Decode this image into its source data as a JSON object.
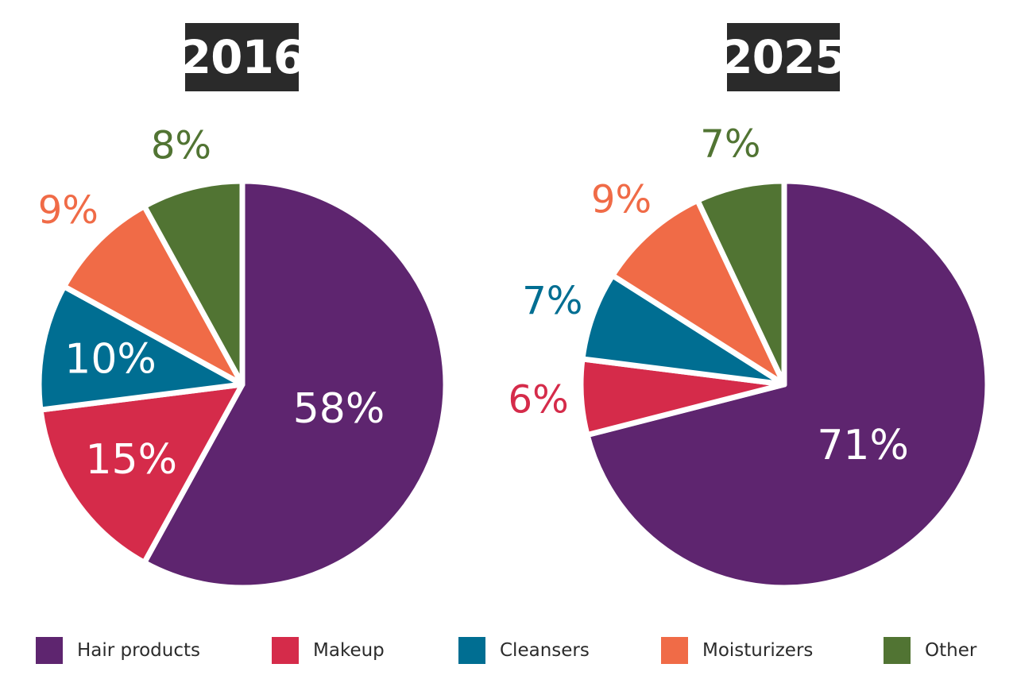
{
  "colors": {
    "hair": "#5e256f",
    "makeup": "#d52b4a",
    "cleansers": "#006e92",
    "moisturizers": "#f06b47",
    "other": "#517433",
    "title_bg": "#2a2a2a"
  },
  "legend": [
    {
      "key": "hair",
      "label": "Hair products"
    },
    {
      "key": "makeup",
      "label": "Makeup"
    },
    {
      "key": "cleansers",
      "label": "Cleansers"
    },
    {
      "key": "moisturizers",
      "label": "Moisturizers"
    },
    {
      "key": "other",
      "label": "Other"
    }
  ],
  "chart_data": [
    {
      "type": "pie",
      "title": "2016",
      "slices": [
        {
          "key": "hair",
          "name": "Hair products",
          "value": 58,
          "label": "58%"
        },
        {
          "key": "makeup",
          "name": "Makeup",
          "value": 15,
          "label": "15%"
        },
        {
          "key": "cleansers",
          "name": "Cleansers",
          "value": 10,
          "label": "10%"
        },
        {
          "key": "moisturizers",
          "name": "Moisturizers",
          "value": 9,
          "label": "9%"
        },
        {
          "key": "other",
          "name": "Other",
          "value": 8,
          "label": "8%"
        }
      ]
    },
    {
      "type": "pie",
      "title": "2025",
      "slices": [
        {
          "key": "hair",
          "name": "Hair products",
          "value": 71,
          "label": "71%"
        },
        {
          "key": "makeup",
          "name": "Makeup",
          "value": 6,
          "label": "6%"
        },
        {
          "key": "cleansers",
          "name": "Cleansers",
          "value": 7,
          "label": "7%"
        },
        {
          "key": "moisturizers",
          "name": "Moisturizers",
          "value": 9,
          "label": "9%"
        },
        {
          "key": "other",
          "name": "Other",
          "value": 7,
          "label": "7%"
        }
      ]
    }
  ]
}
